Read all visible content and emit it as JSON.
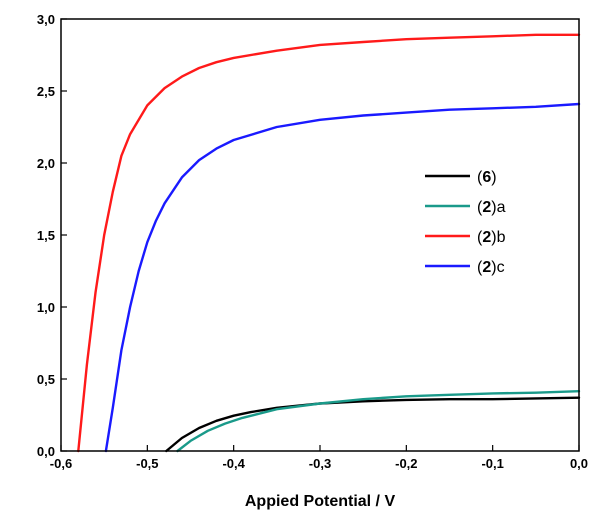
{
  "chart_data": {
    "type": "line",
    "title": "",
    "xlabel": "Appied Potential / V",
    "ylabel": "",
    "xlim": [
      -0.6,
      0.0
    ],
    "ylim": [
      0.0,
      3.0
    ],
    "x_ticks": [
      "-0,6",
      "-0,5",
      "-0,4",
      "-0,3",
      "-0,2",
      "-0,1",
      "0,0"
    ],
    "y_ticks": [
      "0,0",
      "0,5",
      "1,0",
      "1,5",
      "2,0",
      "2,5",
      "3,0"
    ],
    "grid": false,
    "legend_position": "right",
    "series": [
      {
        "name": "6",
        "suffix": "",
        "color": "#000000",
        "x": [
          -0.478,
          -0.46,
          -0.44,
          -0.42,
          -0.4,
          -0.38,
          -0.35,
          -0.3,
          -0.25,
          -0.2,
          -0.15,
          -0.1,
          -0.05,
          0.0
        ],
        "y": [
          0.0,
          0.09,
          0.16,
          0.21,
          0.245,
          0.27,
          0.3,
          0.33,
          0.345,
          0.355,
          0.36,
          0.36,
          0.365,
          0.37
        ]
      },
      {
        "name": "2",
        "suffix": "a",
        "color": "#1a9a8a",
        "x": [
          -0.465,
          -0.45,
          -0.43,
          -0.41,
          -0.39,
          -0.37,
          -0.35,
          -0.3,
          -0.25,
          -0.2,
          -0.15,
          -0.1,
          -0.05,
          0.0
        ],
        "y": [
          0.0,
          0.07,
          0.14,
          0.19,
          0.23,
          0.26,
          0.29,
          0.33,
          0.36,
          0.38,
          0.39,
          0.4,
          0.405,
          0.415
        ]
      },
      {
        "name": "2",
        "suffix": "b",
        "color": "#ff1a1a",
        "x": [
          -0.58,
          -0.57,
          -0.56,
          -0.55,
          -0.54,
          -0.53,
          -0.52,
          -0.5,
          -0.48,
          -0.46,
          -0.44,
          -0.42,
          -0.4,
          -0.35,
          -0.3,
          -0.25,
          -0.2,
          -0.15,
          -0.1,
          -0.05,
          0.0
        ],
        "y": [
          0.0,
          0.6,
          1.1,
          1.5,
          1.8,
          2.05,
          2.2,
          2.4,
          2.52,
          2.6,
          2.66,
          2.7,
          2.73,
          2.78,
          2.82,
          2.84,
          2.86,
          2.87,
          2.88,
          2.89,
          2.89
        ]
      },
      {
        "name": "2",
        "suffix": "c",
        "color": "#1a1aff",
        "x": [
          -0.548,
          -0.54,
          -0.53,
          -0.52,
          -0.51,
          -0.5,
          -0.49,
          -0.48,
          -0.46,
          -0.44,
          -0.42,
          -0.4,
          -0.35,
          -0.3,
          -0.25,
          -0.2,
          -0.15,
          -0.1,
          -0.05,
          0.0
        ],
        "y": [
          0.0,
          0.3,
          0.7,
          1.0,
          1.25,
          1.45,
          1.6,
          1.72,
          1.9,
          2.02,
          2.1,
          2.16,
          2.25,
          2.3,
          2.33,
          2.35,
          2.37,
          2.38,
          2.39,
          2.41
        ]
      }
    ]
  }
}
